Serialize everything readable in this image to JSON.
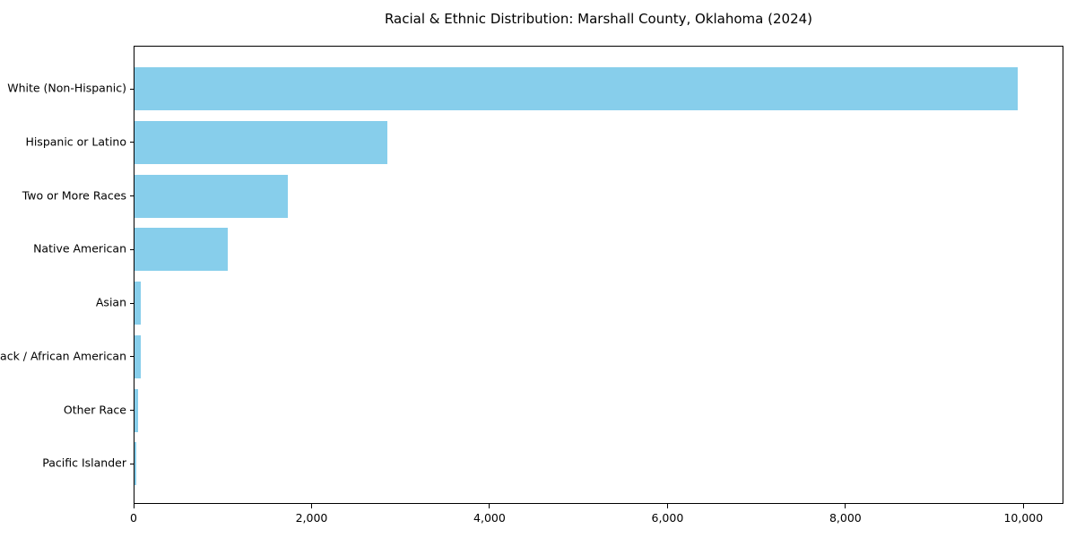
{
  "title": "Racial & Ethnic Distribution: Marshall County, Oklahoma (2024)",
  "colors": {
    "bar": "#87CEEB",
    "text": "#000000",
    "spine": "#000000",
    "background": "#ffffff"
  },
  "chart_data": {
    "type": "bar",
    "orientation": "horizontal",
    "title": "Racial & Ethnic Distribution: Marshall County, Oklahoma (2024)",
    "xlabel": "",
    "ylabel": "",
    "categories": [
      "White (Non-Hispanic)",
      "Hispanic or Latino",
      "Two or More Races",
      "Native American",
      "Asian",
      "Black / African American",
      "Other Race",
      "Pacific Islander"
    ],
    "values": [
      9950,
      2850,
      1730,
      1050,
      75,
      70,
      45,
      25
    ],
    "bar_color": "#87CEEB",
    "xlim": [
      0,
      10450
    ],
    "xticks": [
      0,
      2000,
      4000,
      6000,
      8000,
      10000
    ],
    "xtick_labels": [
      "0",
      "2,000",
      "4,000",
      "6,000",
      "8,000",
      "10,000"
    ],
    "grid": false,
    "legend_position": "none"
  }
}
